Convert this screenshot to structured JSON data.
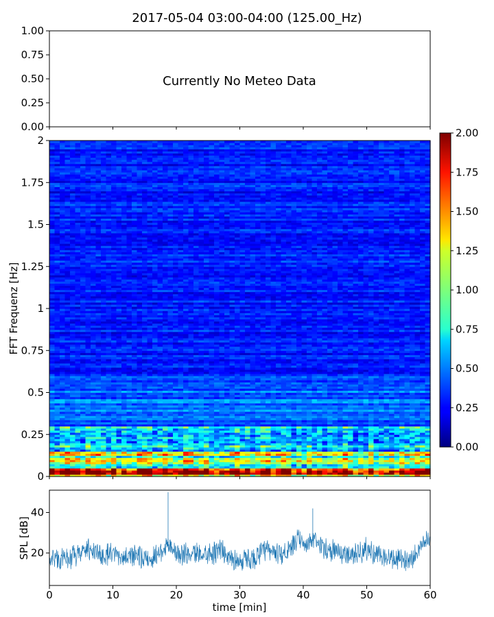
{
  "title": "2017-05-04 03:00-04:00 (125.00_Hz)",
  "chart_data": [
    {
      "type": "line",
      "panel": "meteo",
      "annotation": "Currently No Meteo Data",
      "xlim": [
        0,
        60
      ],
      "ylim": [
        0,
        1
      ],
      "y_ticks": [
        "0.00",
        "0.25",
        "0.50",
        "0.75",
        "1.00"
      ],
      "series": []
    },
    {
      "type": "heatmap",
      "panel": "spectrogram",
      "ylabel": "FFT Frequenz [Hz]",
      "xlim": [
        0,
        60
      ],
      "ylim": [
        0,
        2
      ],
      "y_ticks": [
        "0",
        "0.25",
        "0.5",
        "0.75",
        "1",
        "1.25",
        "1.5",
        "1.75",
        "2"
      ],
      "colormap": "jet",
      "color_range": [
        0,
        2
      ],
      "colorbar_ticks": [
        "0.00",
        "0.25",
        "0.50",
        "0.75",
        "1.00",
        "1.25",
        "1.50",
        "1.75",
        "2.00"
      ],
      "typical_values": [
        {
          "freq_range": [
            0,
            0.05
          ],
          "value": 1.6
        },
        {
          "freq_range": [
            0.05,
            0.15
          ],
          "value": 1.0
        },
        {
          "freq_range": [
            0.15,
            0.3
          ],
          "value": 0.65
        },
        {
          "freq_range": [
            0.3,
            0.6
          ],
          "value": 0.45
        },
        {
          "freq_range": [
            0.6,
            2.0
          ],
          "value": 0.3
        }
      ]
    },
    {
      "type": "line",
      "panel": "spl",
      "xlabel": "time [min]",
      "ylabel": "SPL [dB]",
      "xlim": [
        0,
        60
      ],
      "ylim": [
        4,
        51
      ],
      "x_ticks": [
        "0",
        "10",
        "20",
        "30",
        "40",
        "50",
        "60"
      ],
      "y_ticks": [
        "20",
        "40"
      ],
      "color": "#1f77b4",
      "series": [
        {
          "x": [
            0,
            2,
            4,
            6,
            8,
            10,
            12,
            14,
            16,
            18,
            18.5,
            20,
            22,
            24,
            26,
            27,
            28,
            30,
            32,
            34,
            36,
            38,
            39,
            40,
            41.5,
            42,
            44,
            46,
            48,
            50,
            52,
            54,
            56,
            58,
            59,
            60
          ],
          "y": [
            18,
            17,
            18,
            22,
            19,
            19,
            18,
            18,
            17,
            22,
            25,
            20,
            19,
            20,
            20,
            23,
            18,
            16,
            17,
            21,
            20,
            21,
            27,
            24,
            26,
            25,
            22,
            20,
            19,
            22,
            18,
            17,
            16,
            20,
            27,
            26
          ]
        }
      ],
      "spikes": [
        {
          "x": 18.7,
          "y": 50
        },
        {
          "x": 41.5,
          "y": 42
        }
      ]
    }
  ]
}
